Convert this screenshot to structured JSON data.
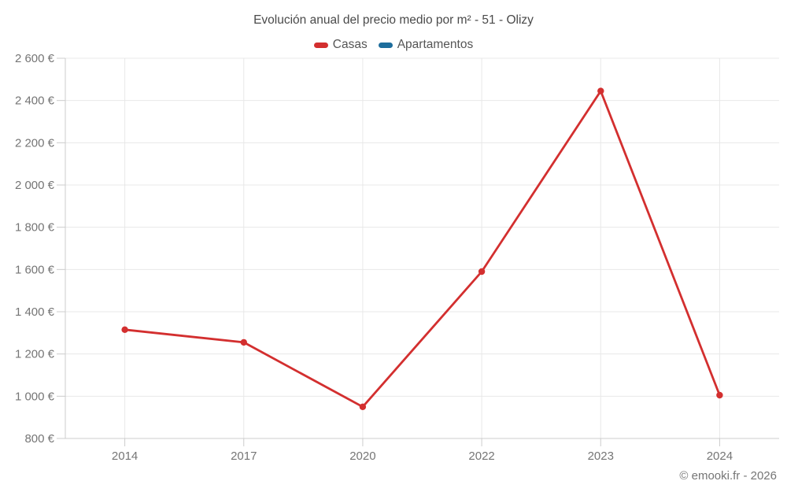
{
  "title": "Evolución anual del precio medio por m² - 51 - Olizy",
  "legend": [
    {
      "label": "Casas",
      "color": "#d32f2f"
    },
    {
      "label": "Apartamentos",
      "color": "#1d6d9c"
    }
  ],
  "footer": "© emooki.fr - 2026",
  "colors": {
    "casas_line": "#d32f2f",
    "apartamentos_line": "#1d6d9c",
    "title_text": "#4a4a4a",
    "legend_text": "#555555",
    "tick_label_text": "#757575",
    "grid_line": "#e8e8e8",
    "axis_line": "#cccccc",
    "background": "#ffffff"
  },
  "chart_data": {
    "type": "line",
    "title": "Evolución anual del precio medio por m² - 51 - Olizy",
    "categories": [
      "2014",
      "2017",
      "2020",
      "2022",
      "2023",
      "2024"
    ],
    "series": [
      {
        "name": "Casas",
        "color": "#d32f2f",
        "values": [
          1315,
          1255,
          950,
          1590,
          2445,
          1005
        ]
      },
      {
        "name": "Apartamentos",
        "color": "#1d6d9c",
        "values": [
          null,
          null,
          null,
          null,
          null,
          null
        ]
      }
    ],
    "xlabel": "",
    "ylabel": "",
    "ylim": [
      800,
      2600
    ],
    "ytick_step": 200,
    "ytick_suffix": " €",
    "grid": true,
    "legend_position": "top",
    "footer": "© emooki.fr - 2026"
  }
}
